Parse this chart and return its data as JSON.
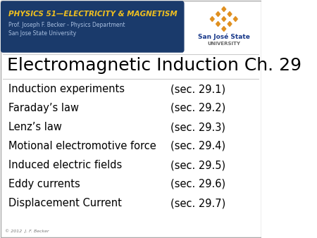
{
  "title": "Electromagnetic Induction Ch. 29",
  "header_title": "PHYSICS 51—ELECTRICITY & MAGNETISM",
  "header_sub1": "Prof. Joseph F. Becker - Physics Department",
  "header_sub2": "San Jose State University",
  "sjsu_line1": "San José State",
  "sjsu_line2": "UNIVERSITY",
  "items": [
    [
      "Induction experiments",
      "(sec. 29.1)"
    ],
    [
      "Faraday’s law",
      "(sec. 29.2)"
    ],
    [
      "Lenz’s law",
      "(sec. 29.3)"
    ],
    [
      "Motional electromotive force",
      "(sec. 29.4)"
    ],
    [
      "Induced electric fields",
      "(sec. 29.5)"
    ],
    [
      "Eddy currents",
      "(sec. 29.6)"
    ],
    [
      "Displacement Current",
      "(sec. 29.7)"
    ]
  ],
  "footer": "© 2012  J. F. Becker",
  "bg_color": "#ffffff",
  "header_bg": "#1a3a6b",
  "header_title_color": "#f0c020",
  "header_sub_color": "#aac0e0",
  "title_color": "#000000",
  "item_left_color": "#000000",
  "item_right_color": "#000000",
  "sjsu_color": "#1a3a8b",
  "sjsu_univ_color": "#666666",
  "diamond_color": "#e09020",
  "footer_color": "#777777"
}
